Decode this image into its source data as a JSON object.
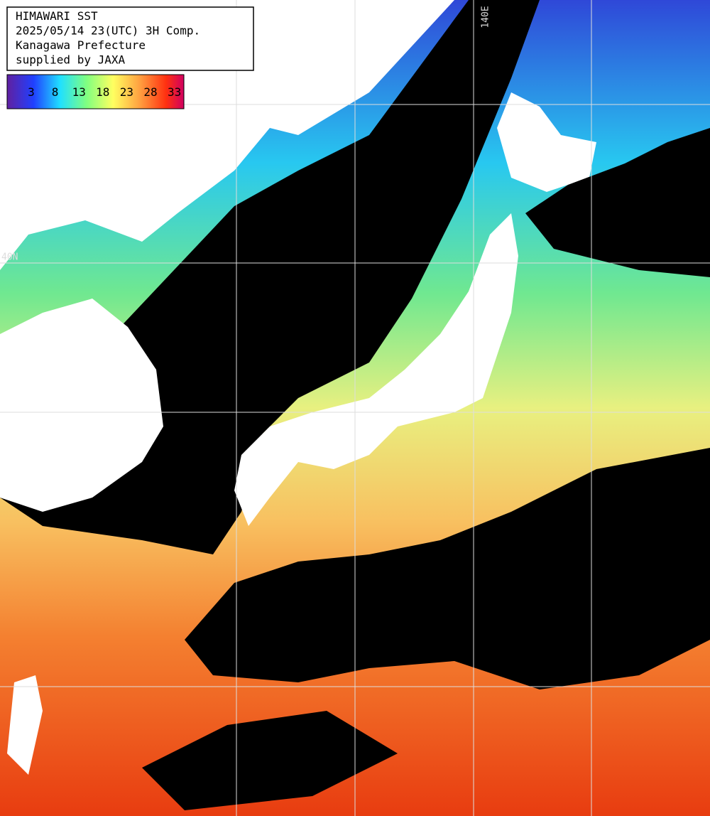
{
  "header": {
    "lines": [
      "HIMAWARI SST",
      "2025/05/14 23(UTC) 3H Comp.",
      "Kanagawa Prefecture",
      "supplied by JAXA"
    ]
  },
  "legend": {
    "ticks": [
      "3",
      "8",
      "13",
      "18",
      "23",
      "28",
      "33"
    ]
  },
  "grid_labels": {
    "lon": "140E",
    "lat": "40N"
  }
}
